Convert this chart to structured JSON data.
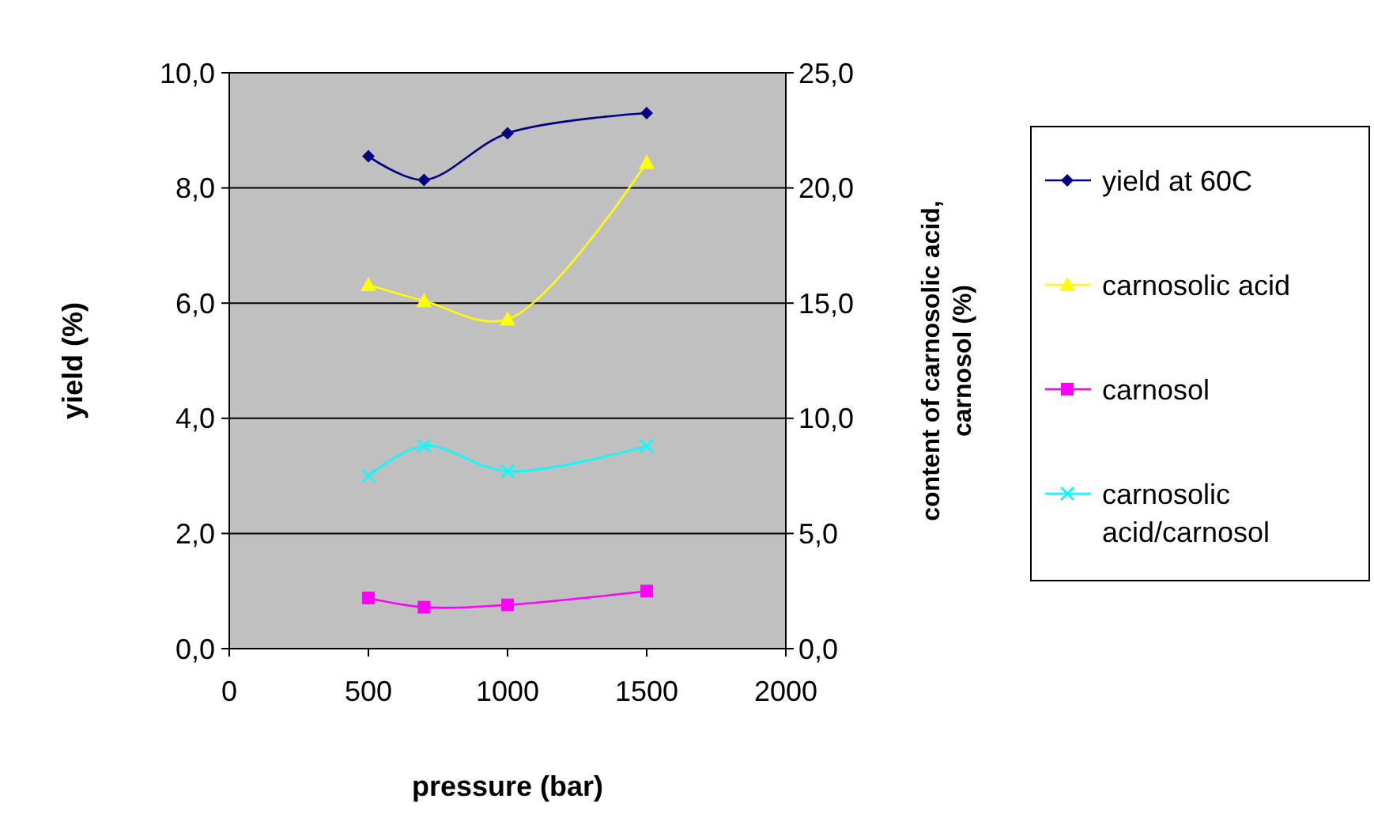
{
  "chart_data": {
    "type": "line",
    "xlabel": "pressure (bar)",
    "ylabel": "yield (%)",
    "y2label": "content of carnosolic acid, carnosol (%)",
    "x": [
      500,
      700,
      1000,
      1500
    ],
    "xlim": [
      0,
      2000
    ],
    "xticks": [
      0,
      500,
      1000,
      1500,
      2000
    ],
    "ylim": [
      0,
      10
    ],
    "yticks": [
      {
        "value": 0,
        "label": "0,0"
      },
      {
        "value": 2,
        "label": "2,0"
      },
      {
        "value": 4,
        "label": "4,0"
      },
      {
        "value": 6,
        "label": "6,0"
      },
      {
        "value": 8,
        "label": "8,0"
      },
      {
        "value": 10,
        "label": "10,0"
      }
    ],
    "y2lim": [
      0,
      25
    ],
    "y2ticks": [
      {
        "value": 0,
        "label": "0,0"
      },
      {
        "value": 5,
        "label": "5,0"
      },
      {
        "value": 10,
        "label": "10,0"
      },
      {
        "value": 15,
        "label": "15,0"
      },
      {
        "value": 20,
        "label": "20,0"
      },
      {
        "value": 25,
        "label": "25,0"
      }
    ],
    "grid": "y",
    "legend": "right",
    "series": [
      {
        "name": "yield at 60C",
        "color": "#000080",
        "marker": "diamond",
        "values": [
          8.55,
          8.14,
          8.95,
          9.3
        ]
      },
      {
        "name": "carnosolic acid",
        "color": "#ffff00",
        "marker": "triangle",
        "axis": "y2",
        "values": [
          15.8,
          15.1,
          14.3,
          21.1
        ]
      },
      {
        "name": "carnosol",
        "color": "#ff00ff",
        "marker": "square",
        "axis": "y2",
        "values": [
          2.2,
          1.8,
          1.9,
          2.5
        ]
      },
      {
        "name": "carnosolic acid/carnosol",
        "color": "#00ffff",
        "marker": "cross",
        "values": [
          3.0,
          3.52,
          3.08,
          3.52
        ]
      }
    ]
  }
}
